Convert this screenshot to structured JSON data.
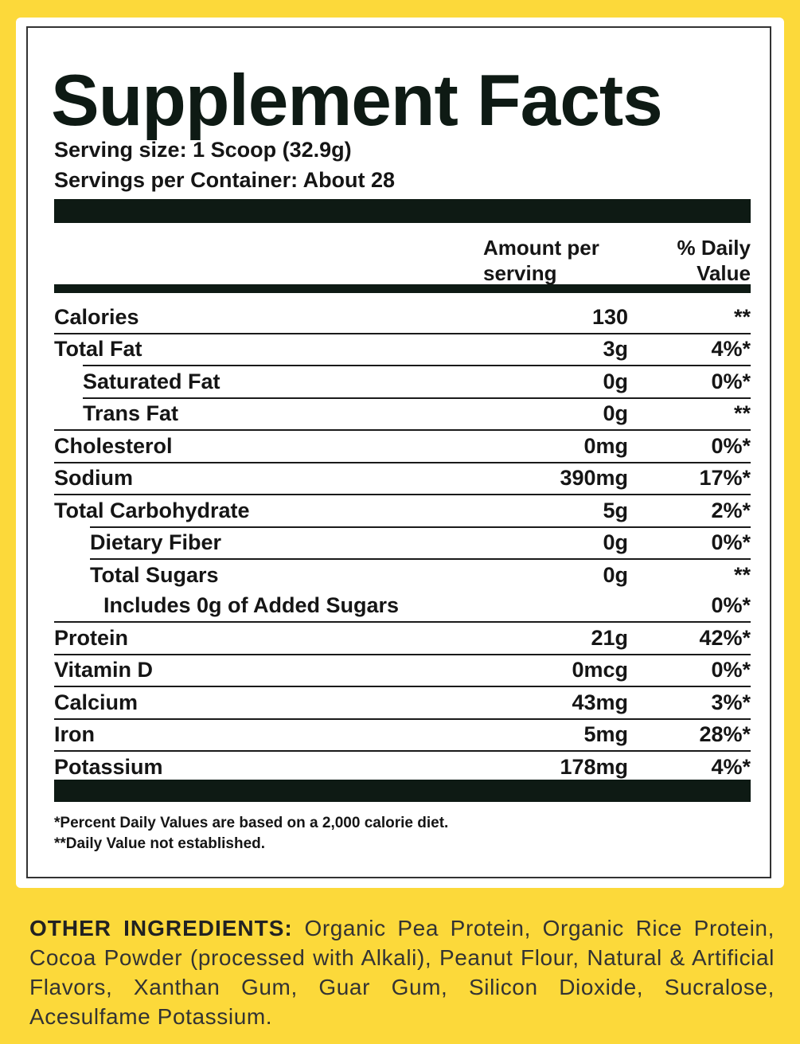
{
  "title": "Supplement Facts",
  "serving_size": "Serving size: 1 Scoop (32.9g)",
  "servings_per_container": "Servings per Container: About 28",
  "table": {
    "header": {
      "amount": "Amount per serving",
      "daily_value": "% Daily Value"
    },
    "rows": [
      {
        "name": "Calories",
        "amount": "130",
        "dv": "**"
      },
      {
        "name": "Total Fat",
        "amount": "3g",
        "dv": "4%*"
      },
      {
        "name": "Saturated Fat",
        "amount": "0g",
        "dv": "0%*"
      },
      {
        "name": "Trans Fat",
        "amount": "0g",
        "dv": "**"
      },
      {
        "name": "Cholesterol",
        "amount": "0mg",
        "dv": "0%*"
      },
      {
        "name": "Sodium",
        "amount": "390mg",
        "dv": "17%*"
      },
      {
        "name": "Total Carbohydrate",
        "amount": "5g",
        "dv": "2%*"
      },
      {
        "name": "Dietary Fiber",
        "amount": "0g",
        "dv": "0%*"
      },
      {
        "name": "Total Sugars",
        "amount": "0g",
        "dv": "**"
      },
      {
        "name": "Includes 0g of Added Sugars",
        "dv": "0%*"
      },
      {
        "name": "Protein",
        "amount": "21g",
        "dv": "42%*"
      },
      {
        "name": "Vitamin D",
        "amount": "0mcg",
        "dv": "0%*"
      },
      {
        "name": "Calcium",
        "amount": "43mg",
        "dv": "3%*"
      },
      {
        "name": "Iron",
        "amount": "5mg",
        "dv": "28%*"
      },
      {
        "name": "Potassium",
        "amount": "178mg",
        "dv": "4%*"
      }
    ]
  },
  "footnotes": [
    "*Percent Daily Values are based on a 2,000 calorie diet.",
    "**Daily Value not established."
  ],
  "other_ingredients": {
    "label": "OTHER INGREDIENTS:",
    "text": "Organic Pea Protein, Organic Rice Protein, Cocoa Powder (processed with Alkali), Peanut Flour, Natural & Artificial Flavors, Xanthan Gum, Guar Gum, Silicon Dioxide, Sucralose, Acesulfame Potassium."
  }
}
